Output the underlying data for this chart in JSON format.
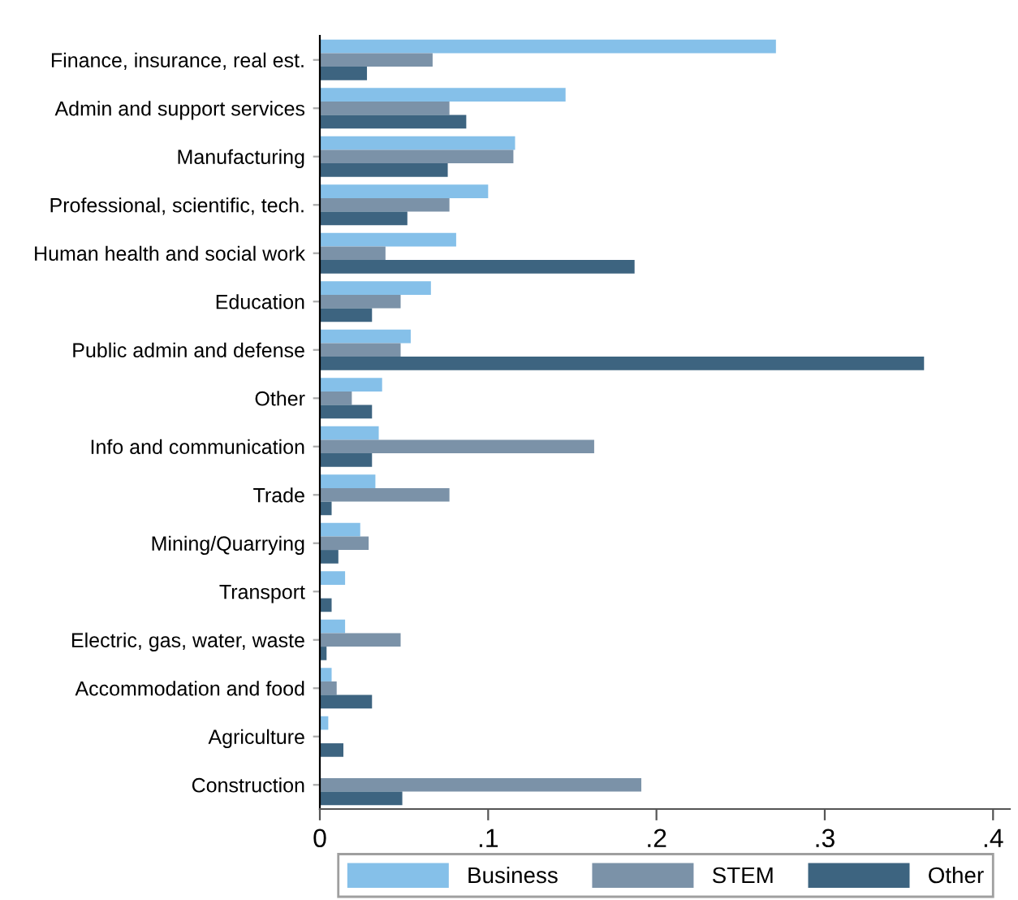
{
  "chart_data": {
    "type": "bar",
    "orientation": "horizontal",
    "categories": [
      "Finance, insurance, real est.",
      "Admin and support services",
      "Manufacturing",
      "Professional, scientific, tech.",
      "Human health and social work",
      "Education",
      "Public admin and defense",
      "Other",
      "Info and communication",
      "Trade",
      "Mining/Quarrying",
      "Transport",
      "Electric, gas, water, waste",
      "Accommodation and food",
      "Agriculture",
      "Construction"
    ],
    "series": [
      {
        "name": "Business",
        "color": "#85c0e9",
        "values": [
          0.271,
          0.146,
          0.116,
          0.1,
          0.081,
          0.066,
          0.054,
          0.037,
          0.035,
          0.033,
          0.024,
          0.015,
          0.015,
          0.007,
          0.005,
          0
        ]
      },
      {
        "name": "STEM",
        "color": "#7b92a8",
        "values": [
          0.067,
          0.077,
          0.115,
          0.077,
          0.039,
          0.048,
          0.048,
          0.019,
          0.163,
          0.077,
          0.029,
          0,
          0.048,
          0.01,
          0,
          0.191
        ]
      },
      {
        "name": "Other",
        "color": "#3d6480",
        "values": [
          0.028,
          0.087,
          0.076,
          0.052,
          0.187,
          0.031,
          0.359,
          0.031,
          0.031,
          0.007,
          0.011,
          0.007,
          0.004,
          0.031,
          0.014,
          0.049
        ]
      }
    ],
    "xlim": [
      0,
      0.41
    ],
    "xticks": [
      0,
      {
        "value": 0.1,
        "label": ".1"
      },
      {
        "value": 0.2,
        "label": ".2"
      },
      {
        "value": 0.3,
        "label": ".3"
      },
      {
        "value": 0.4,
        "label": ".4"
      }
    ],
    "grid": false,
    "legend": "bottom"
  }
}
